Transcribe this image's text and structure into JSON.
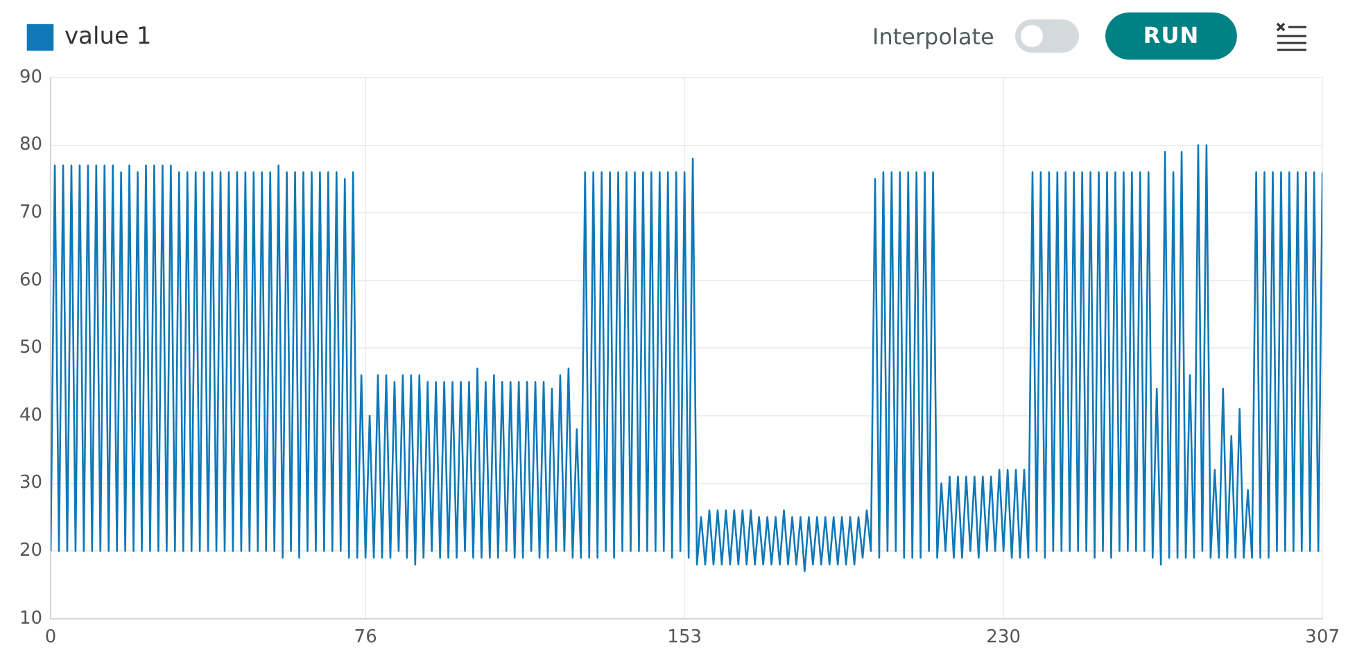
{
  "chart_data": {
    "type": "line",
    "annotations": [
      "Interpolate",
      "RUN"
    ],
    "x": [
      0,
      1,
      2,
      3,
      4,
      5,
      6,
      7,
      8,
      9,
      10,
      11,
      12,
      13,
      14,
      15,
      16,
      17,
      18,
      19,
      20,
      21,
      22,
      23,
      24,
      25,
      26,
      27,
      28,
      29,
      30,
      31,
      32,
      33,
      34,
      35,
      36,
      37,
      38,
      39,
      40,
      41,
      42,
      43,
      44,
      45,
      46,
      47,
      48,
      49,
      50,
      51,
      52,
      53,
      54,
      55,
      56,
      57,
      58,
      59,
      60,
      61,
      62,
      63,
      64,
      65,
      66,
      67,
      68,
      69,
      70,
      71,
      72,
      73,
      74,
      75,
      76,
      77,
      78,
      79,
      80,
      81,
      82,
      83,
      84,
      85,
      86,
      87,
      88,
      89,
      90,
      91,
      92,
      93,
      94,
      95,
      96,
      97,
      98,
      99,
      100,
      101,
      102,
      103,
      104,
      105,
      106,
      107,
      108,
      109,
      110,
      111,
      112,
      113,
      114,
      115,
      116,
      117,
      118,
      119,
      120,
      121,
      122,
      123,
      124,
      125,
      126,
      127,
      128,
      129,
      130,
      131,
      132,
      133,
      134,
      135,
      136,
      137,
      138,
      139,
      140,
      141,
      142,
      143,
      144,
      145,
      146,
      147,
      148,
      149,
      150,
      151,
      152,
      153,
      154,
      155,
      156,
      157,
      158,
      159,
      160,
      161,
      162,
      163,
      164,
      165,
      166,
      167,
      168,
      169,
      170,
      171,
      172,
      173,
      174,
      175,
      176,
      177,
      178,
      179,
      180,
      181,
      182,
      183,
      184,
      185,
      186,
      187,
      188,
      189,
      190,
      191,
      192,
      193,
      194,
      195,
      196,
      197,
      198,
      199,
      200,
      201,
      202,
      203,
      204,
      205,
      206,
      207,
      208,
      209,
      210,
      211,
      212,
      213,
      214,
      215,
      216,
      217,
      218,
      219,
      220,
      221,
      222,
      223,
      224,
      225,
      226,
      227,
      228,
      229,
      230,
      231,
      232,
      233,
      234,
      235,
      236,
      237,
      238,
      239,
      240,
      241,
      242,
      243,
      244,
      245,
      246,
      247,
      248,
      249,
      250,
      251,
      252,
      253,
      254,
      255,
      256,
      257,
      258,
      259,
      260,
      261,
      262,
      263,
      264,
      265,
      266,
      267,
      268,
      269,
      270,
      271,
      272,
      273,
      274,
      275,
      276,
      277,
      278,
      279,
      280,
      281,
      282,
      283,
      284,
      285,
      286,
      287,
      288,
      289,
      290,
      291,
      292,
      293,
      294,
      295,
      296,
      297,
      298,
      299,
      300,
      301,
      302,
      303,
      304,
      305,
      306,
      307
    ],
    "series": [
      {
        "name": "value 1",
        "color": "#0f78b8",
        "values": [
          20,
          77,
          20,
          77,
          20,
          77,
          20,
          77,
          20,
          77,
          20,
          77,
          20,
          77,
          20,
          77,
          20,
          76,
          20,
          77,
          20,
          76,
          20,
          77,
          20,
          77,
          20,
          77,
          20,
          77,
          20,
          76,
          20,
          76,
          20,
          76,
          20,
          76,
          20,
          76,
          20,
          76,
          20,
          76,
          20,
          76,
          20,
          76,
          20,
          76,
          20,
          76,
          20,
          76,
          20,
          77,
          19,
          76,
          20,
          76,
          19,
          76,
          20,
          76,
          20,
          76,
          20,
          76,
          20,
          76,
          20,
          75,
          19,
          76,
          19,
          46,
          19,
          40,
          19,
          46,
          19,
          46,
          19,
          45,
          20,
          46,
          19,
          46,
          18,
          46,
          19,
          45,
          20,
          45,
          19,
          45,
          19,
          45,
          19,
          45,
          20,
          45,
          19,
          47,
          19,
          45,
          19,
          46,
          19,
          45,
          20,
          45,
          19,
          45,
          19,
          45,
          20,
          45,
          19,
          45,
          19,
          44,
          20,
          46,
          20,
          47,
          19,
          38,
          19,
          76,
          19,
          76,
          19,
          76,
          20,
          76,
          19,
          76,
          20,
          76,
          20,
          76,
          20,
          76,
          20,
          76,
          20,
          76,
          20,
          76,
          19,
          76,
          20,
          76,
          19,
          78,
          18,
          25,
          18,
          26,
          18,
          26,
          18,
          26,
          18,
          26,
          18,
          26,
          18,
          26,
          18,
          25,
          18,
          25,
          18,
          25,
          18,
          26,
          18,
          25,
          18,
          25,
          17,
          25,
          18,
          25,
          18,
          25,
          18,
          25,
          18,
          25,
          18,
          25,
          18,
          25,
          19,
          26,
          20,
          75,
          19,
          76,
          20,
          76,
          20,
          76,
          19,
          76,
          19,
          76,
          19,
          76,
          20,
          76,
          19,
          30,
          20,
          31,
          19,
          31,
          19,
          31,
          20,
          31,
          19,
          31,
          20,
          31,
          20,
          32,
          20,
          32,
          19,
          32,
          19,
          32,
          19,
          76,
          20,
          76,
          19,
          76,
          20,
          76,
          20,
          76,
          20,
          76,
          20,
          76,
          20,
          76,
          19,
          76,
          20,
          76,
          19,
          76,
          20,
          76,
          20,
          76,
          20,
          76,
          20,
          76,
          19,
          44,
          18,
          79,
          19,
          76,
          19,
          79,
          19,
          46,
          19,
          80,
          20,
          80,
          19,
          32,
          19,
          44,
          19,
          37,
          19,
          41,
          19,
          29,
          19,
          76,
          19,
          76,
          19,
          76,
          20,
          76,
          20,
          76,
          20,
          76,
          20,
          76,
          20,
          76,
          20,
          76
        ]
      }
    ],
    "xlim": [
      0,
      307
    ],
    "xticks": [
      0,
      76,
      153,
      230,
      307
    ],
    "ylim": [
      10,
      90
    ],
    "yticks": [
      10,
      20,
      30,
      40,
      50,
      60,
      70,
      80,
      90
    ],
    "grid": true,
    "legend": "top left",
    "marker": "none"
  }
}
